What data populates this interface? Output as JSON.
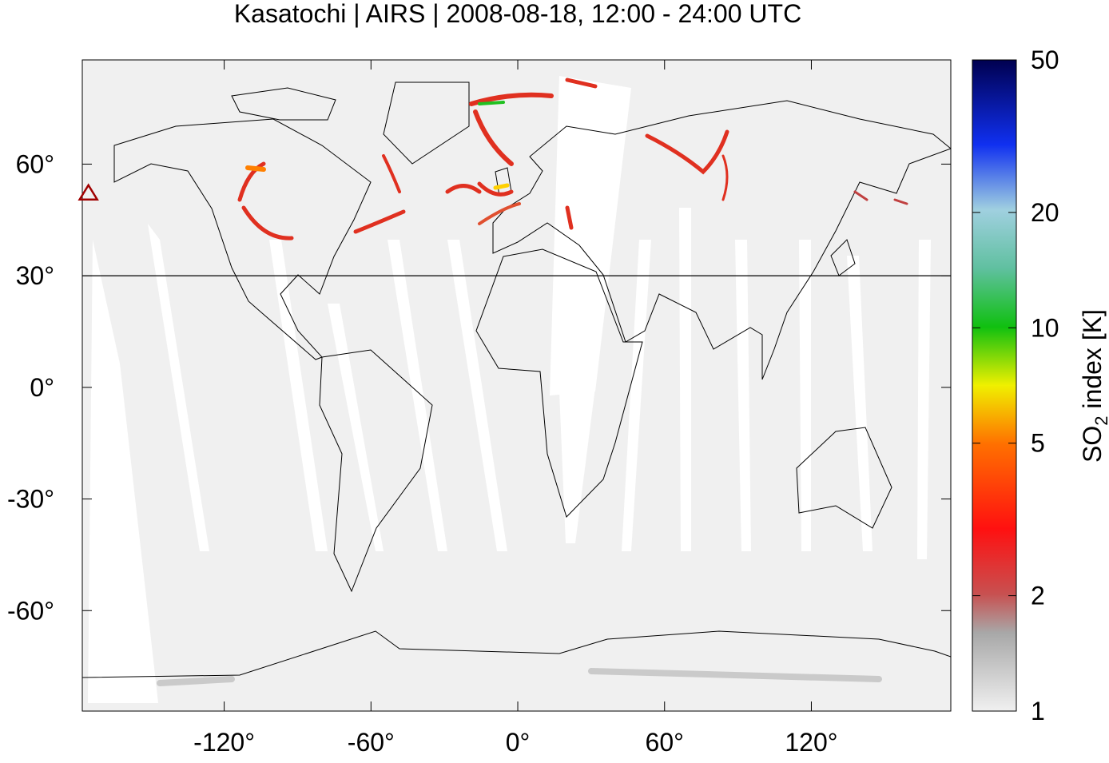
{
  "title": "Kasatochi | AIRS | 2008-08-18, 12:00 - 24:00 UTC",
  "map": {
    "lonlim": [
      -178,
      177
    ],
    "latlim": [
      -87,
      88
    ],
    "lonticks": [
      {
        "value": -120,
        "label": "-120°"
      },
      {
        "value": -60,
        "label": "-60°"
      },
      {
        "value": 0,
        "label": "0°"
      },
      {
        "value": 60,
        "label": "60°"
      },
      {
        "value": 120,
        "label": "120°"
      }
    ],
    "latticks": [
      {
        "value": 60,
        "label": "60°"
      },
      {
        "value": 30,
        "label": "30°"
      },
      {
        "value": 0,
        "label": "0°"
      },
      {
        "value": -30,
        "label": "-30°"
      },
      {
        "value": -60,
        "label": "-60°"
      }
    ],
    "reference_lat": 30,
    "volcano": {
      "lon": -175.5,
      "lat": 52.2
    }
  },
  "colorbar": {
    "scale": "log",
    "range": [
      1,
      50
    ],
    "ticks": [
      1,
      2,
      5,
      10,
      20,
      50
    ],
    "title_main": "SO",
    "title_sub": "2",
    "title_rest": " index [K]"
  }
}
